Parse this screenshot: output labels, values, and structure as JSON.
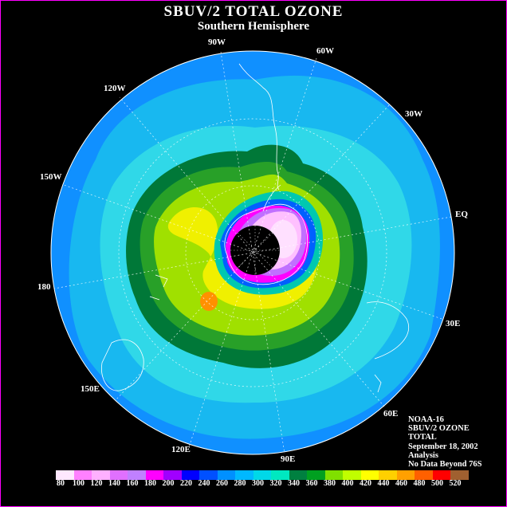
{
  "title": "SBUV/2 TOTAL OZONE",
  "subtitle": "Southern Hemisphere",
  "longitude_labels": {
    "w90": "90W",
    "w60": "60W",
    "w30": "30W",
    "w120": "120W",
    "w150": "150W",
    "eq": "EQ",
    "e180": "180",
    "e30": "30E",
    "e150": "150E",
    "e60": "60E",
    "e120": "120E",
    "e90": "90E"
  },
  "info": {
    "satellite": "NOAA-16",
    "product": "SBUV/2 OZONE",
    "field": "TOTAL",
    "date": "September 18, 2002",
    "kind": "Analysis",
    "note": "No Data Beyond 76S"
  },
  "legend": {
    "ticks": [
      "80",
      "100",
      "120",
      "140",
      "160",
      "180",
      "200",
      "220",
      "240",
      "260",
      "280",
      "300",
      "320",
      "340",
      "360",
      "380",
      "400",
      "420",
      "440",
      "460",
      "480",
      "500",
      "520"
    ],
    "colors": [
      "#ffe8ff",
      "#ff80ff",
      "#ffb0ff",
      "#e070ff",
      "#c080ff",
      "#ff00ff",
      "#a000ff",
      "#0000ff",
      "#0050ff",
      "#0090ff",
      "#00b8ff",
      "#00d8e8",
      "#00e8c0",
      "#008040",
      "#00a020",
      "#80e000",
      "#c0ff00",
      "#ffff00",
      "#ffd000",
      "#ffa000",
      "#ff6000",
      "#ff0000",
      "#a06030"
    ]
  },
  "map_colors": {
    "outer": "#1090ff",
    "band_light": "#18b8f0",
    "band_cyan": "#30d8e8",
    "band_teal": "#00c8b0",
    "band_darkgreen": "#007838",
    "band_green": "#28a028",
    "band_lightgreen": "#a0e000",
    "band_yellow": "#f0f000",
    "band_orange": "#ff9000",
    "hole_violet": "#c070ff",
    "hole_pink": "#ffc0ff",
    "hole_core": "#ffe0ff",
    "hole_magenta": "#ff00ff",
    "no_data": "#000000"
  }
}
